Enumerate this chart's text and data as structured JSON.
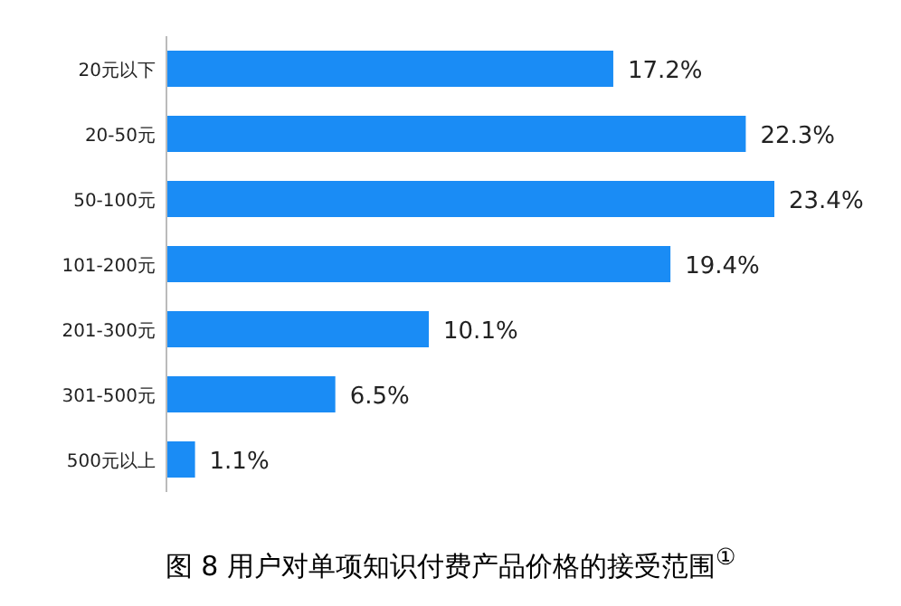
{
  "chart_data": {
    "type": "bar",
    "orientation": "horizontal",
    "title": "图 8  用户对单项知识付费产品价格的接受范围$^{①}$",
    "categories": [
      "20元以下",
      "20-50元",
      "50-100元",
      "101-200元",
      "201-300元",
      "301-500元",
      "500元以上"
    ],
    "values": [
      17.2,
      22.3,
      23.4,
      19.4,
      10.1,
      6.5,
      1.1
    ],
    "value_labels": [
      "17.2%",
      "22.3%",
      "23.4%",
      "19.4%",
      "10.1%",
      "6.5%",
      "1.1%"
    ],
    "color": "#1a8cf5"
  }
}
